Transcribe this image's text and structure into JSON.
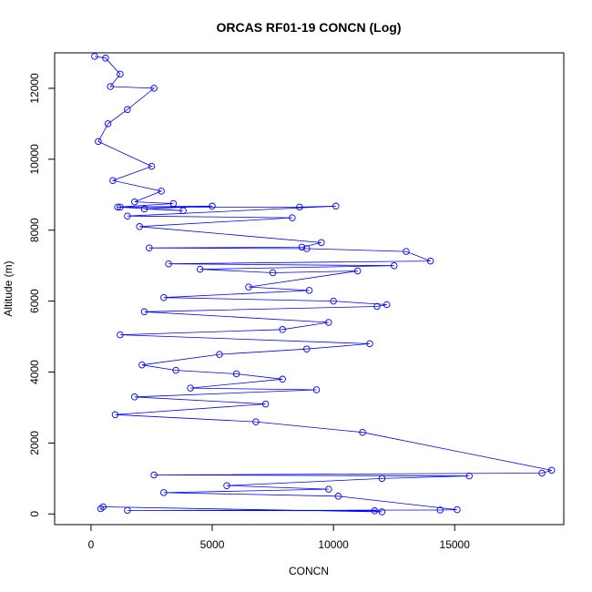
{
  "chart_data": {
    "type": "scatter",
    "title": "ORCAS RF01-19 CONCN (Log)",
    "xlabel": "CONCN",
    "ylabel": "Altitude (m)",
    "xlim": [
      -1500,
      19500
    ],
    "ylim": [
      -300,
      13000
    ],
    "xticks": [
      0,
      5000,
      10000,
      15000
    ],
    "yticks": [
      0,
      2000,
      4000,
      6000,
      8000,
      10000,
      12000
    ],
    "xtick_labels": [
      "0",
      "5000",
      "10000",
      "15000"
    ],
    "ytick_labels": [
      "0",
      "2000",
      "4000",
      "6000",
      "8000",
      "10000",
      "12000"
    ],
    "grid": false,
    "legend": "none",
    "marker": "open-circle",
    "connected_lines": true,
    "series": [
      {
        "color": "#0000ff",
        "x": [
          150,
          600,
          1200,
          800,
          2600,
          1500,
          700,
          300,
          2500,
          900,
          2900,
          1800,
          3400,
          1100,
          3800,
          2200,
          5000,
          1200,
          8600,
          10100,
          1500,
          8300,
          2000,
          9500,
          8700,
          2400,
          8900,
          13000,
          14000,
          3200,
          12500,
          4500,
          7500,
          11000,
          6500,
          9000,
          3000,
          10000,
          12200,
          11800,
          2200,
          9800,
          7900,
          1200,
          11500,
          8900,
          5300,
          2100,
          3500,
          6000,
          7900,
          4100,
          9300,
          1800,
          7200,
          1000,
          6800,
          11200,
          19000,
          18600,
          2600,
          15600,
          12000,
          5600,
          9800,
          3000,
          10200,
          15100,
          14400,
          1500,
          11700,
          12000,
          500,
          400
        ],
        "y": [
          12900,
          12850,
          12400,
          12050,
          12000,
          11400,
          11000,
          10500,
          9800,
          9400,
          9100,
          8800,
          8750,
          8650,
          8550,
          8600,
          8680,
          8650,
          8650,
          8680,
          8400,
          8350,
          8100,
          7650,
          7520,
          7500,
          7480,
          7400,
          7130,
          7050,
          7000,
          6900,
          6800,
          6850,
          6400,
          6300,
          6100,
          6000,
          5900,
          5850,
          5700,
          5400,
          5200,
          5050,
          4800,
          4650,
          4500,
          4200,
          4050,
          3950,
          3800,
          3550,
          3500,
          3300,
          3100,
          2800,
          2600,
          2300,
          1230,
          1150,
          1100,
          1070,
          1000,
          800,
          700,
          600,
          500,
          120,
          110,
          100,
          90,
          60,
          200,
          150
        ]
      }
    ]
  }
}
